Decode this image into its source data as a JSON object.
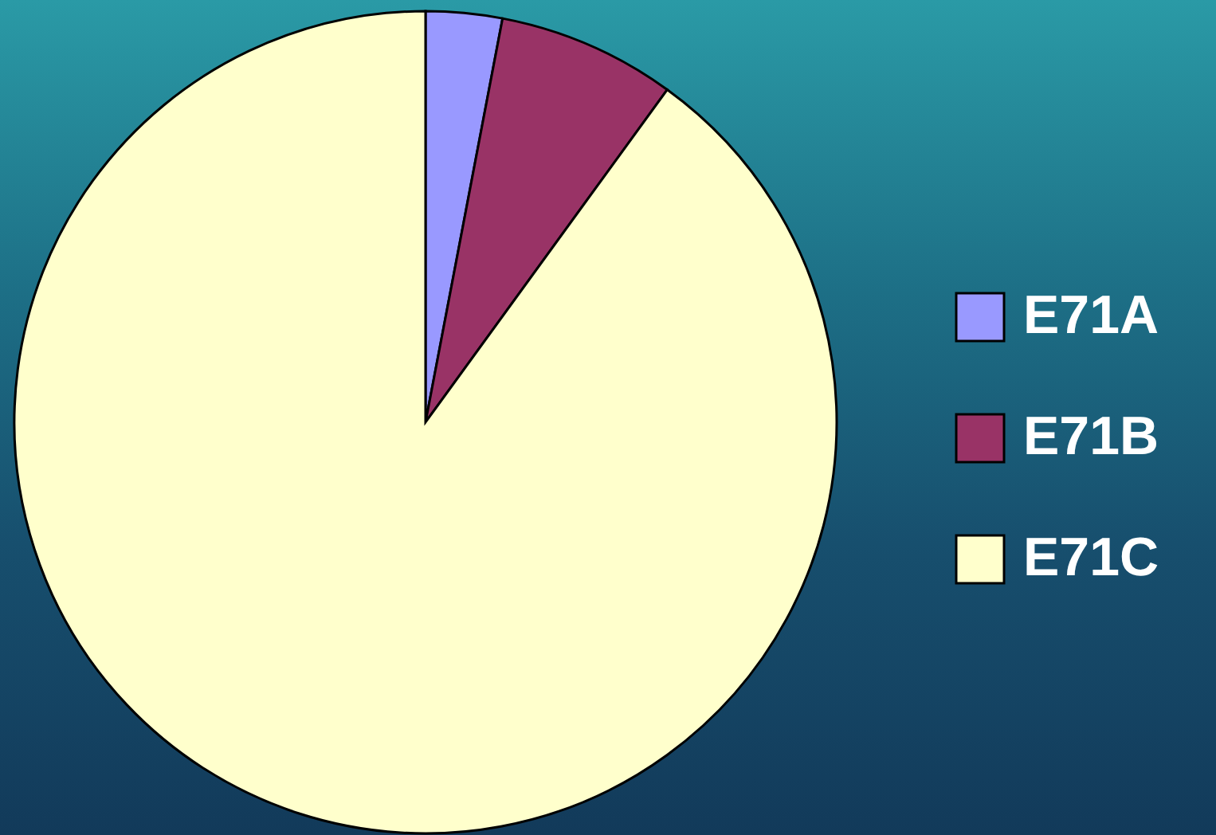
{
  "chart_data": {
    "type": "pie",
    "categories": [
      "E71A",
      "E71B",
      "E71C"
    ],
    "values": [
      3,
      7,
      90
    ],
    "colors": [
      "#9999ff",
      "#993366",
      "#ffffcc"
    ],
    "legend": "right"
  }
}
